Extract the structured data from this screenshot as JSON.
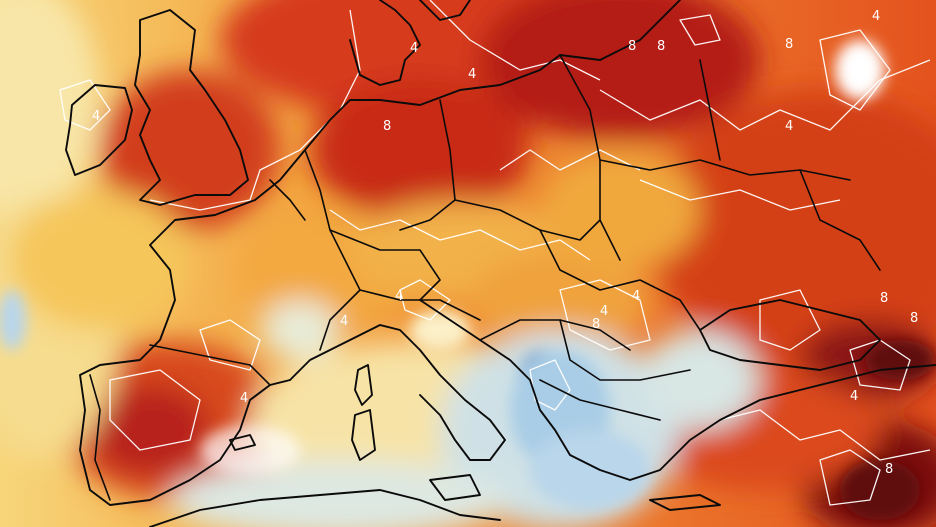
{
  "map": {
    "colors": {
      "cold_blue": "#1f5fae",
      "light_blue": "#bcd9ea",
      "pale_yellow": "#f8df8a",
      "yellow": "#f5c14a",
      "orange": "#ee7a22",
      "red_orange": "#d9401c",
      "dark_red": "#9c1412",
      "maroon": "#5e0b0d",
      "contour_line": "#ffffff",
      "border_line": "#0b0b0b"
    },
    "contour_labels": [
      "4",
      "8",
      "4",
      "8",
      "8",
      "4",
      "8",
      "4",
      "4",
      "4",
      "4",
      "4",
      "4",
      "8",
      "8",
      "8",
      "4",
      "8",
      "4"
    ]
  }
}
